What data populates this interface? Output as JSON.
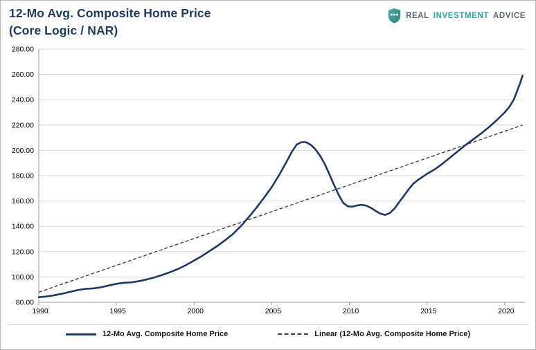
{
  "header": {
    "title_line1": "12-Mo Avg. Composite Home Price",
    "title_line2": "(Core Logic / NAR)",
    "logo": {
      "word1": "REAL",
      "word2": "INVESTMENT",
      "word3": "ADVICE",
      "icon": "shield-with-three-dots"
    }
  },
  "colors": {
    "title": "#1f3b5e",
    "line": "#1f3864",
    "trend": "#404040",
    "grid": "#d9d9d9",
    "axis": "#9a9a9a",
    "tick_text": "#000000",
    "logo_teal": "#33a3a0",
    "logo_gray": "#5b6770"
  },
  "chart_data": {
    "type": "line",
    "title": "12-Mo Avg. Composite Home Price (Core Logic / NAR)",
    "xlabel": "",
    "ylabel": "",
    "xlim": [
      1990,
      2021.3
    ],
    "ylim": [
      80,
      280
    ],
    "y_ticks": [
      80,
      100,
      120,
      140,
      160,
      180,
      200,
      220,
      240,
      260,
      280
    ],
    "x_ticks": [
      1990,
      1995,
      2000,
      2005,
      2010,
      2015,
      2020
    ],
    "grid": "horizontal",
    "legend_position": "bottom",
    "series": [
      {
        "name": "12-Mo Avg. Composite Home Price",
        "style": "solid",
        "color": "#1f3864",
        "points": [
          [
            1990.0,
            84.0
          ],
          [
            1990.5,
            84.6
          ],
          [
            1991.0,
            85.6
          ],
          [
            1991.5,
            86.8
          ],
          [
            1992.0,
            88.2
          ],
          [
            1992.5,
            89.6
          ],
          [
            1993.0,
            90.6
          ],
          [
            1993.5,
            91.0
          ],
          [
            1994.0,
            91.8
          ],
          [
            1994.5,
            93.2
          ],
          [
            1995.0,
            94.6
          ],
          [
            1995.5,
            95.4
          ],
          [
            1996.0,
            95.8
          ],
          [
            1996.5,
            96.8
          ],
          [
            1997.0,
            98.2
          ],
          [
            1997.5,
            99.8
          ],
          [
            1998.0,
            101.8
          ],
          [
            1998.5,
            104.0
          ],
          [
            1999.0,
            106.5
          ],
          [
            1999.5,
            109.5
          ],
          [
            2000.0,
            113.0
          ],
          [
            2000.5,
            116.5
          ],
          [
            2001.0,
            120.5
          ],
          [
            2001.5,
            124.5
          ],
          [
            2002.0,
            129.0
          ],
          [
            2002.5,
            134.0
          ],
          [
            2003.0,
            140.0
          ],
          [
            2003.5,
            147.0
          ],
          [
            2004.0,
            154.5
          ],
          [
            2004.5,
            162.5
          ],
          [
            2005.0,
            171.0
          ],
          [
            2005.5,
            181.0
          ],
          [
            2006.0,
            192.0
          ],
          [
            2006.3,
            199.0
          ],
          [
            2006.6,
            204.5
          ],
          [
            2006.9,
            206.5
          ],
          [
            2007.2,
            206.5
          ],
          [
            2007.5,
            204.5
          ],
          [
            2007.8,
            201.0
          ],
          [
            2008.1,
            196.0
          ],
          [
            2008.4,
            189.5
          ],
          [
            2008.7,
            181.5
          ],
          [
            2009.0,
            173.0
          ],
          [
            2009.3,
            165.0
          ],
          [
            2009.6,
            158.5
          ],
          [
            2009.9,
            155.8
          ],
          [
            2010.2,
            155.5
          ],
          [
            2010.5,
            156.5
          ],
          [
            2010.8,
            157.0
          ],
          [
            2011.1,
            156.3
          ],
          [
            2011.4,
            154.5
          ],
          [
            2011.7,
            152.0
          ],
          [
            2012.0,
            150.0
          ],
          [
            2012.3,
            149.0
          ],
          [
            2012.6,
            150.5
          ],
          [
            2012.9,
            154.0
          ],
          [
            2013.2,
            159.0
          ],
          [
            2013.5,
            164.0
          ],
          [
            2013.8,
            169.0
          ],
          [
            2014.1,
            173.5
          ],
          [
            2014.4,
            176.5
          ],
          [
            2014.7,
            179.0
          ],
          [
            2015.0,
            181.5
          ],
          [
            2015.5,
            185.0
          ],
          [
            2016.0,
            189.5
          ],
          [
            2016.5,
            194.5
          ],
          [
            2017.0,
            199.5
          ],
          [
            2017.5,
            204.5
          ],
          [
            2018.0,
            209.0
          ],
          [
            2018.5,
            213.5
          ],
          [
            2019.0,
            218.5
          ],
          [
            2019.5,
            224.0
          ],
          [
            2020.0,
            230.0
          ],
          [
            2020.3,
            234.5
          ],
          [
            2020.6,
            240.5
          ],
          [
            2020.8,
            247.0
          ],
          [
            2021.0,
            253.5
          ],
          [
            2021.15,
            259.0
          ]
        ]
      },
      {
        "name": "Linear (12-Mo Avg. Composite Home Price)",
        "style": "dashed",
        "color": "#404040",
        "points": [
          [
            1990.0,
            88.0
          ],
          [
            2021.15,
            220.0
          ]
        ]
      }
    ],
    "legend": [
      {
        "label": "12-Mo Avg. Composite Home Price",
        "style": "solid"
      },
      {
        "label": "Linear (12-Mo Avg. Composite Home Price)",
        "style": "dashed"
      }
    ]
  }
}
